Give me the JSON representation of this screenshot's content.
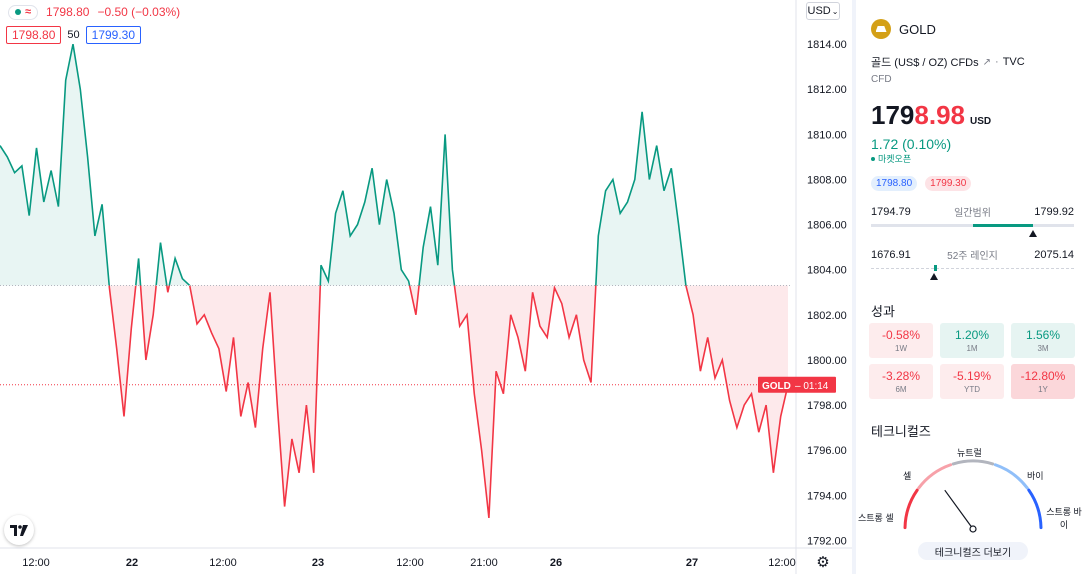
{
  "legend": {
    "last": "1798.80",
    "change": "−0.50 (−0.03%)",
    "bid": "1798.80",
    "spread": "50",
    "ask": "1799.30",
    "currency_select": "USD"
  },
  "price_axis": {
    "ticks": [
      "1814.00",
      "1812.00",
      "1810.00",
      "1808.00",
      "1806.00",
      "1804.00",
      "1802.00",
      "1800.00",
      "1798.00",
      "1796.00",
      "1794.00",
      "1792.00"
    ],
    "current_label_symbol": "GOLD",
    "current_label_time": "01:14"
  },
  "time_axis": {
    "ticks": [
      "12:00",
      "22",
      "12:00",
      "23",
      "12:00",
      "21:00",
      "26",
      "27",
      "12:00"
    ]
  },
  "chart_data": {
    "type": "area",
    "symbol": "GOLD",
    "baseline": 1803.3,
    "last_price": 1798.9,
    "ylim": [
      1791,
      1816
    ],
    "x_ticks": [
      "12:00",
      "22",
      "12:00",
      "23",
      "12:00",
      "21:00",
      "26",
      "27",
      "12:00"
    ],
    "y_ticks": [
      1814,
      1812,
      1810,
      1808,
      1806,
      1804,
      1802,
      1800,
      1798,
      1796,
      1794,
      1792
    ],
    "series": [
      {
        "values": [
          1809.5,
          1809.0,
          1808.3,
          1808.6,
          1806.4,
          1809.4,
          1807.0,
          1808.4,
          1806.8,
          1812.4,
          1814.0,
          1812.0,
          1809.0,
          1805.5,
          1806.9,
          1803.2,
          1800.5,
          1797.5,
          1801.4,
          1804.5,
          1800.0,
          1802.0,
          1805.2,
          1803.0,
          1804.5,
          1803.6,
          1803.3,
          1801.6,
          1802.0,
          1801.2,
          1800.5,
          1798.6,
          1801.0,
          1797.5,
          1799.0,
          1797.0,
          1800.5,
          1803.0,
          1798.0,
          1793.5,
          1796.5,
          1795.0,
          1798.0,
          1795.0,
          1804.2,
          1803.5,
          1806.5,
          1807.5,
          1805.5,
          1806.0,
          1807.0,
          1808.5,
          1806.0,
          1808.0,
          1806.5,
          1804.0,
          1803.5,
          1802.0,
          1805.0,
          1806.8,
          1804.2,
          1810.0,
          1804.0,
          1801.5,
          1802.0,
          1798.5,
          1796.0,
          1793.0,
          1799.5,
          1798.5,
          1802.0,
          1801.0,
          1799.5,
          1803.0,
          1801.5,
          1801.0,
          1803.2,
          1802.5,
          1801.0,
          1802.0,
          1800.0,
          1799.0,
          1805.5,
          1807.5,
          1808.0,
          1806.5,
          1807.0,
          1808.0,
          1811.0,
          1808.0,
          1809.5,
          1807.5,
          1808.5,
          1806.0,
          1803.3,
          1802.0,
          1799.5,
          1801.0,
          1799.2,
          1800.0,
          1798.2,
          1797.0,
          1798.0,
          1798.5,
          1796.8,
          1798.0,
          1795.0,
          1797.5,
          1798.9
        ]
      }
    ]
  },
  "side": {
    "symbol": "GOLD",
    "description": "골드 (US$ / OZ) CFDs",
    "exchange": "TVC",
    "type": "CFD",
    "price_prefix": "179",
    "price_suffix": "8.98",
    "currency": "USD",
    "change": "1.72 (0.10%)",
    "market_status": "마켓오픈",
    "bid": "1798.80",
    "ask": "1799.30",
    "day_low": "1794.79",
    "day_label": "일간범위",
    "day_high": "1799.92",
    "day_range_fraction": 0.8,
    "week52_low": "1676.91",
    "week52_label": "52주 레인지",
    "week52_high": "2075.14",
    "week52_fraction": 0.31,
    "perf_title": "성과",
    "performance": [
      {
        "value": "-0.58%",
        "period": "1W",
        "tone": "neg"
      },
      {
        "value": "1.20%",
        "period": "1M",
        "tone": "pos"
      },
      {
        "value": "1.56%",
        "period": "3M",
        "tone": "pos"
      },
      {
        "value": "-3.28%",
        "period": "6M",
        "tone": "neg"
      },
      {
        "value": "-5.19%",
        "period": "YTD",
        "tone": "neg"
      },
      {
        "value": "-12.80%",
        "period": "1Y",
        "tone": "neg-strong"
      }
    ],
    "tech_title": "테크니컬즈",
    "gauge": {
      "strong_sell": "스트롱 셀",
      "sell": "셀",
      "neutral": "뉴트럴",
      "buy": "바이",
      "strong_buy": "스트롱 바이",
      "needle_level": 0.3
    },
    "tech_button": "테크니컬즈 더보기"
  },
  "colors": {
    "up": "#089981",
    "down": "#f23645",
    "up_fill": "#e8f5f3",
    "down_fill": "#fde9eb",
    "accent": "#2962ff"
  }
}
